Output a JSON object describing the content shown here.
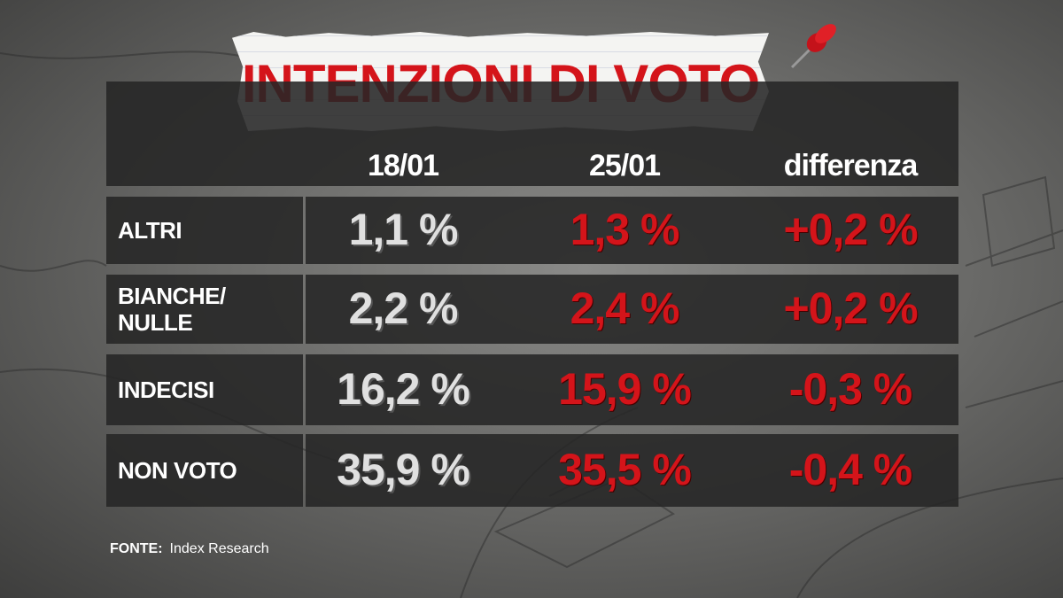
{
  "header": {
    "title": "INTENZIONI DI VOTO"
  },
  "table": {
    "columns": [
      "18/01",
      "25/01",
      "differenza"
    ],
    "rows": [
      {
        "label": "ALTRI",
        "cells": [
          "1,1 %",
          "1,3 %",
          "+0,2 %"
        ]
      },
      {
        "label": "BIANCHE/\nNULLE",
        "cells": [
          "2,2 %",
          "2,4 %",
          "+0,2 %"
        ]
      },
      {
        "label": "INDECISI",
        "cells": [
          "16,2 %",
          "15,9 %",
          "-0,3 %"
        ]
      },
      {
        "label": "NON VOTO",
        "cells": [
          "35,9 %",
          "35,5 %",
          "-0,4 %"
        ]
      }
    ]
  },
  "source": {
    "label": "FONTE:",
    "text": "Index Research"
  }
}
